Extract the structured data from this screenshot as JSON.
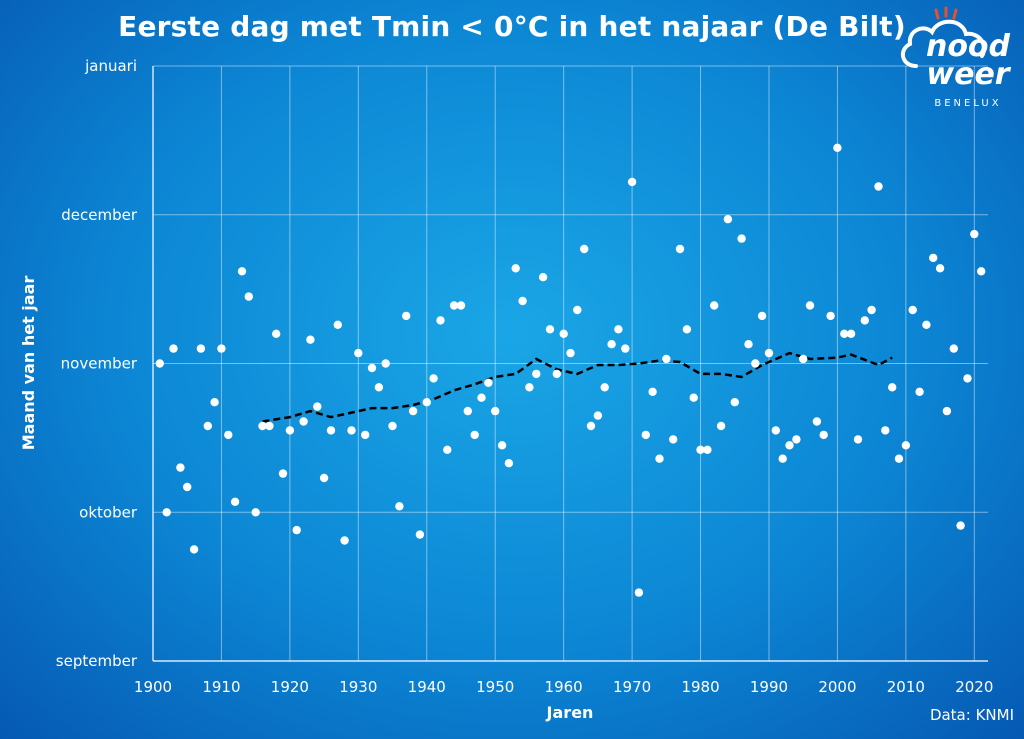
{
  "chart_data": {
    "type": "scatter",
    "title": "Eerste dag met Tmin < 0°C in het najaar (De Bilt)",
    "xlabel": "Jaren",
    "ylabel": "Maand van het jaar",
    "xlim": [
      1900,
      2022
    ],
    "xticks": [
      1900,
      1910,
      1920,
      1930,
      1940,
      1950,
      1960,
      1970,
      1980,
      1990,
      2000,
      2010,
      2020
    ],
    "ylim": [
      0,
      4
    ],
    "yticks": [
      {
        "value": 0,
        "label": "september"
      },
      {
        "value": 1,
        "label": "oktober"
      },
      {
        "value": 2,
        "label": "november"
      },
      {
        "value": 3,
        "label": "december"
      },
      {
        "value": 4,
        "label": "januari"
      }
    ],
    "grid": true,
    "series": [
      {
        "type": "scatter",
        "color": "#ffffff",
        "points": [
          [
            1901,
            2.0
          ],
          [
            1902,
            1.0
          ],
          [
            1903,
            2.1
          ],
          [
            1904,
            1.3
          ],
          [
            1905,
            1.17
          ],
          [
            1906,
            0.75
          ],
          [
            1907,
            2.1
          ],
          [
            1908,
            1.58
          ],
          [
            1909,
            1.74
          ],
          [
            1910,
            2.1
          ],
          [
            1911,
            1.52
          ],
          [
            1912,
            1.07
          ],
          [
            1913,
            2.62
          ],
          [
            1914,
            2.45
          ],
          [
            1915,
            1.0
          ],
          [
            1916,
            1.58
          ],
          [
            1917,
            1.58
          ],
          [
            1918,
            2.2
          ],
          [
            1919,
            1.26
          ],
          [
            1920,
            1.55
          ],
          [
            1921,
            0.88
          ],
          [
            1922,
            1.61
          ],
          [
            1923,
            2.16
          ],
          [
            1924,
            1.71
          ],
          [
            1925,
            1.23
          ],
          [
            1926,
            1.55
          ],
          [
            1927,
            2.26
          ],
          [
            1928,
            0.81
          ],
          [
            1929,
            1.55
          ],
          [
            1930,
            2.07
          ],
          [
            1931,
            1.52
          ],
          [
            1932,
            1.97
          ],
          [
            1933,
            1.84
          ],
          [
            1934,
            2.0
          ],
          [
            1935,
            1.58
          ],
          [
            1936,
            1.04
          ],
          [
            1937,
            2.32
          ],
          [
            1938,
            1.68
          ],
          [
            1939,
            0.85
          ],
          [
            1940,
            1.74
          ],
          [
            1941,
            1.9
          ],
          [
            1942,
            2.29
          ],
          [
            1943,
            1.42
          ],
          [
            1944,
            2.39
          ],
          [
            1945,
            2.39
          ],
          [
            1946,
            1.68
          ],
          [
            1947,
            1.52
          ],
          [
            1948,
            1.77
          ],
          [
            1949,
            1.87
          ],
          [
            1950,
            1.68
          ],
          [
            1951,
            1.45
          ],
          [
            1952,
            1.33
          ],
          [
            1953,
            2.64
          ],
          [
            1954,
            2.42
          ],
          [
            1955,
            1.84
          ],
          [
            1956,
            1.93
          ],
          [
            1957,
            2.58
          ],
          [
            1958,
            2.23
          ],
          [
            1959,
            1.93
          ],
          [
            1960,
            2.2
          ],
          [
            1961,
            2.07
          ],
          [
            1962,
            2.36
          ],
          [
            1963,
            2.77
          ],
          [
            1964,
            1.58
          ],
          [
            1965,
            1.65
          ],
          [
            1966,
            1.84
          ],
          [
            1967,
            2.13
          ],
          [
            1968,
            2.23
          ],
          [
            1969,
            2.1
          ],
          [
            1970,
            3.22
          ],
          [
            1971,
            0.46
          ],
          [
            1972,
            1.52
          ],
          [
            1973,
            1.81
          ],
          [
            1974,
            1.36
          ],
          [
            1975,
            2.03
          ],
          [
            1976,
            1.49
          ],
          [
            1977,
            2.77
          ],
          [
            1978,
            2.23
          ],
          [
            1979,
            1.77
          ],
          [
            1980,
            1.42
          ],
          [
            1981,
            1.42
          ],
          [
            1982,
            2.39
          ],
          [
            1983,
            1.58
          ],
          [
            1984,
            2.97
          ],
          [
            1985,
            1.74
          ],
          [
            1986,
            2.84
          ],
          [
            1987,
            2.13
          ],
          [
            1988,
            2.0
          ],
          [
            1989,
            2.32
          ],
          [
            1990,
            2.07
          ],
          [
            1991,
            1.55
          ],
          [
            1992,
            1.36
          ],
          [
            1993,
            1.45
          ],
          [
            1994,
            1.49
          ],
          [
            1995,
            2.03
          ],
          [
            1996,
            2.39
          ],
          [
            1997,
            1.61
          ],
          [
            1998,
            1.52
          ],
          [
            1999,
            2.32
          ],
          [
            2000,
            3.45
          ],
          [
            2001,
            2.2
          ],
          [
            2002,
            2.2
          ],
          [
            2003,
            1.49
          ],
          [
            2004,
            2.29
          ],
          [
            2005,
            2.36
          ],
          [
            2006,
            3.19
          ],
          [
            2007,
            1.55
          ],
          [
            2008,
            1.84
          ],
          [
            2009,
            1.36
          ],
          [
            2010,
            1.45
          ],
          [
            2011,
            2.36
          ],
          [
            2012,
            1.81
          ],
          [
            2013,
            2.26
          ],
          [
            2014,
            2.71
          ],
          [
            2015,
            2.64
          ],
          [
            2016,
            1.68
          ],
          [
            2017,
            2.1
          ],
          [
            2018,
            0.91
          ],
          [
            2019,
            1.9
          ],
          [
            2020,
            2.87
          ],
          [
            2021,
            2.62
          ]
        ]
      },
      {
        "type": "line",
        "style": "dashed",
        "color": "#000000",
        "points": [
          [
            1916,
            1.61
          ],
          [
            1920,
            1.64
          ],
          [
            1923,
            1.68
          ],
          [
            1926,
            1.64
          ],
          [
            1929,
            1.67
          ],
          [
            1932,
            1.7
          ],
          [
            1935,
            1.7
          ],
          [
            1938,
            1.72
          ],
          [
            1941,
            1.76
          ],
          [
            1944,
            1.82
          ],
          [
            1947,
            1.86
          ],
          [
            1950,
            1.91
          ],
          [
            1953,
            1.93
          ],
          [
            1956,
            2.03
          ],
          [
            1959,
            1.96
          ],
          [
            1962,
            1.93
          ],
          [
            1965,
            1.99
          ],
          [
            1968,
            1.99
          ],
          [
            1971,
            2.0
          ],
          [
            1974,
            2.02
          ],
          [
            1977,
            2.01
          ],
          [
            1980,
            1.93
          ],
          [
            1983,
            1.93
          ],
          [
            1986,
            1.91
          ],
          [
            1989,
            1.99
          ],
          [
            1993,
            2.07
          ],
          [
            1996,
            2.03
          ],
          [
            2000,
            2.04
          ],
          [
            2002,
            2.06
          ],
          [
            2006,
            1.99
          ],
          [
            2008,
            2.04
          ]
        ]
      }
    ],
    "source": "Data: KNMI"
  },
  "logo": {
    "line1": "nood",
    "line2": "weer",
    "line3": "BENELUX",
    "accent": "#e8502a"
  }
}
